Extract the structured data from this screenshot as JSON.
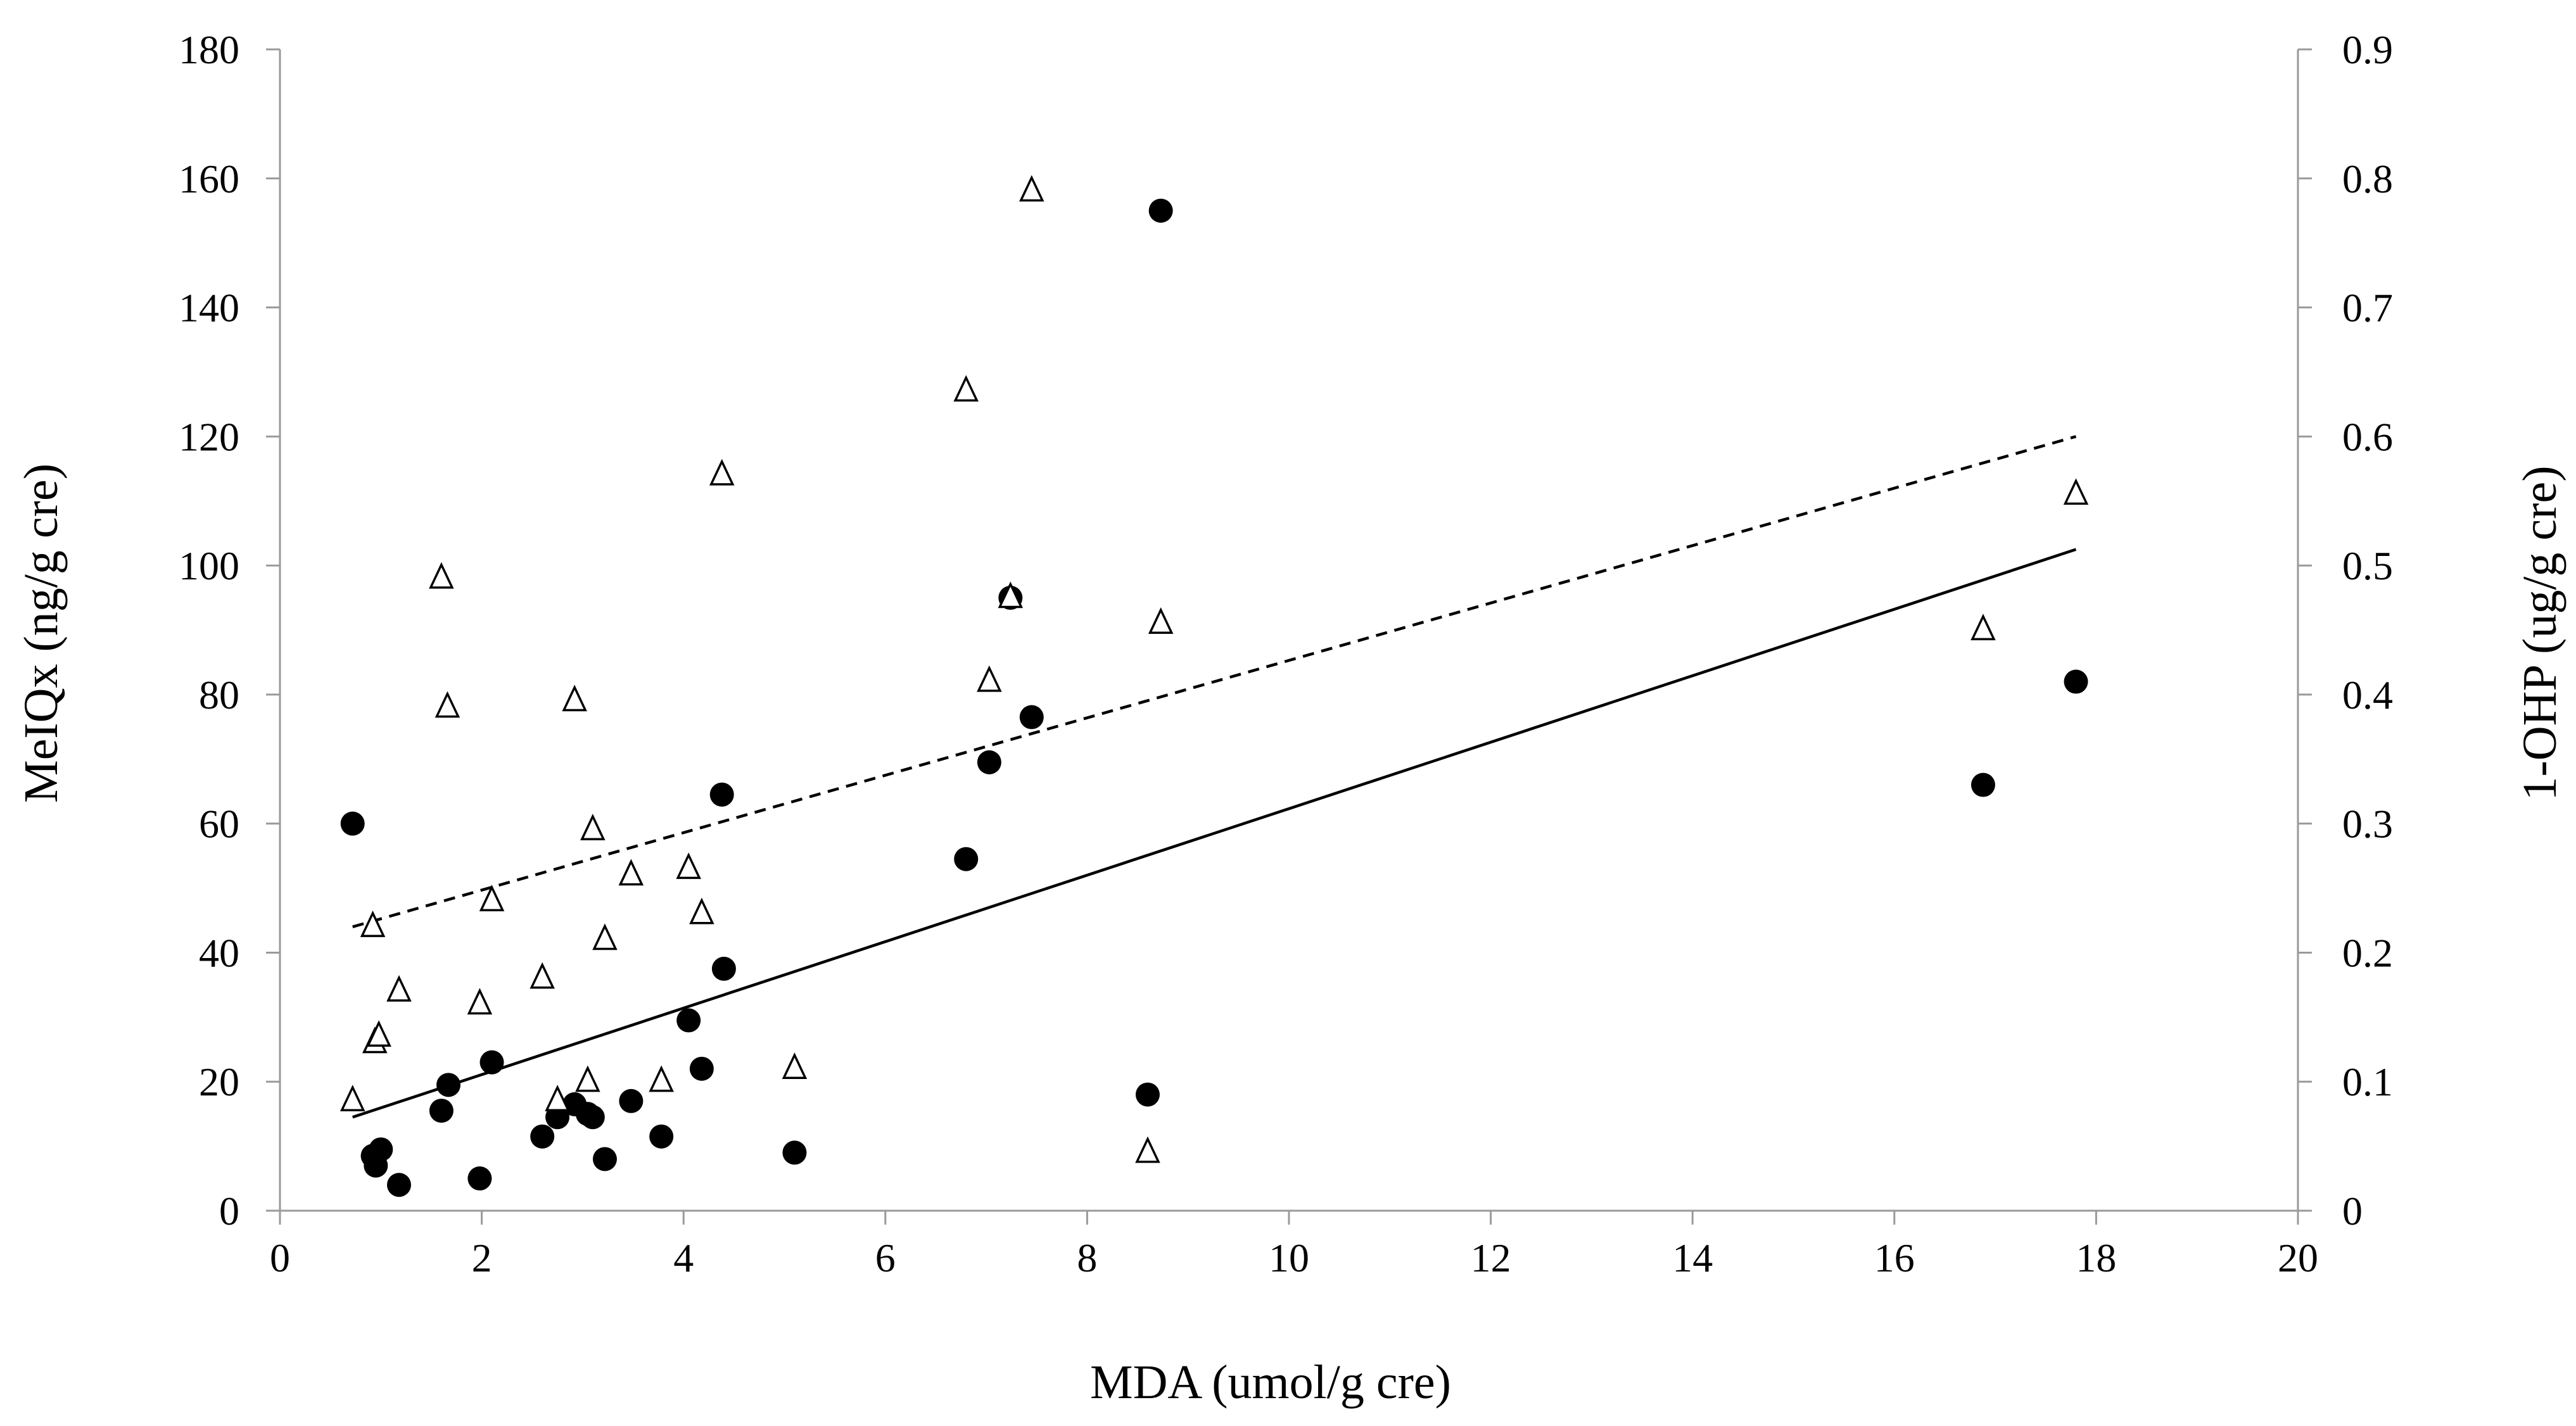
{
  "chart_data": {
    "type": "scatter",
    "title": "",
    "xlabel": "MDA (umol/g cre)",
    "ylabel_left": "MeIQx (ng/g cre)",
    "ylabel_right": "1-OHP (ug/g cre)",
    "xlim": [
      0,
      20
    ],
    "ylim_left": [
      0,
      180
    ],
    "ylim_right": [
      0,
      0.9
    ],
    "x_ticks": [
      "0",
      "2",
      "4",
      "6",
      "8",
      "10",
      "12",
      "14",
      "16",
      "18",
      "20"
    ],
    "y_left_ticks": [
      "0",
      "20",
      "40",
      "60",
      "80",
      "100",
      "120",
      "140",
      "160",
      "180"
    ],
    "y_right_ticks": [
      "0",
      "0.1",
      "0.2",
      "0.3",
      "0.4",
      "0.5",
      "0.6",
      "0.7",
      "0.8",
      "0.9"
    ],
    "grid": false,
    "series": [
      {
        "name": "MeIQx",
        "marker": "filled-circle",
        "axis": "left",
        "color": "#000000",
        "points": [
          [
            0.72,
            60
          ],
          [
            0.92,
            8.5
          ],
          [
            0.95,
            7
          ],
          [
            1.0,
            9.5
          ],
          [
            1.18,
            4
          ],
          [
            1.6,
            15.5
          ],
          [
            1.67,
            19.5
          ],
          [
            1.98,
            5
          ],
          [
            2.1,
            23
          ],
          [
            2.6,
            11.5
          ],
          [
            2.75,
            14.5
          ],
          [
            2.92,
            16.5
          ],
          [
            3.05,
            15
          ],
          [
            3.1,
            14.5
          ],
          [
            3.22,
            8
          ],
          [
            3.48,
            17
          ],
          [
            3.78,
            11.5
          ],
          [
            4.05,
            29.5
          ],
          [
            4.18,
            22
          ],
          [
            4.38,
            64.5
          ],
          [
            4.4,
            37.5
          ],
          [
            5.1,
            9
          ],
          [
            6.8,
            54.5
          ],
          [
            7.03,
            69.5
          ],
          [
            7.24,
            95
          ],
          [
            7.45,
            76.5
          ],
          [
            8.6,
            18
          ],
          [
            8.73,
            155
          ],
          [
            16.88,
            66
          ],
          [
            17.8,
            82
          ]
        ]
      },
      {
        "name": "1-OHP",
        "marker": "open-triangle",
        "axis": "right",
        "color": "#000000",
        "points": [
          [
            0.72,
            0.085
          ],
          [
            0.92,
            0.22
          ],
          [
            0.94,
            0.13
          ],
          [
            0.98,
            0.135
          ],
          [
            1.18,
            0.17
          ],
          [
            1.6,
            0.49
          ],
          [
            1.66,
            0.39
          ],
          [
            1.98,
            0.16
          ],
          [
            2.1,
            0.24
          ],
          [
            2.6,
            0.18
          ],
          [
            2.75,
            0.085
          ],
          [
            2.92,
            0.395
          ],
          [
            3.05,
            0.1
          ],
          [
            3.1,
            0.295
          ],
          [
            3.22,
            0.21
          ],
          [
            3.48,
            0.26
          ],
          [
            3.78,
            0.1
          ],
          [
            4.05,
            0.265
          ],
          [
            4.18,
            0.23
          ],
          [
            4.38,
            0.57
          ],
          [
            5.1,
            0.11
          ],
          [
            6.8,
            0.635
          ],
          [
            7.03,
            0.41
          ],
          [
            7.24,
            0.475
          ],
          [
            7.45,
            0.79
          ],
          [
            8.6,
            0.045
          ],
          [
            8.73,
            0.455
          ],
          [
            16.88,
            0.45
          ],
          [
            17.8,
            0.555
          ]
        ]
      }
    ],
    "trendlines": [
      {
        "name": "MeIQx trend",
        "style": "solid",
        "axis": "left",
        "x": [
          0.72,
          17.8
        ],
        "y": [
          14.5,
          102.5
        ]
      },
      {
        "name": "1-OHP trend",
        "style": "dashed",
        "axis": "right",
        "x": [
          0.72,
          17.8
        ],
        "y": [
          0.22,
          0.6
        ]
      }
    ]
  }
}
